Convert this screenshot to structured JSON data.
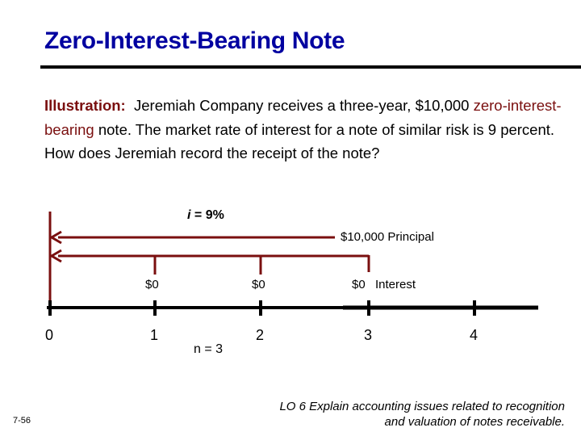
{
  "title": "Zero-Interest-Bearing Note",
  "illustration": {
    "label": "Illustration:",
    "text_1": "Jeremiah Company receives a three-year, $10,000",
    "emphasis": "zero-interest-bearing",
    "text_2": "note. The market rate of interest for a note of similar risk is 9 percent.  How does Jeremiah record the receipt of the note?"
  },
  "timeline": {
    "rate_symbol": "i",
    "rate_value": "= 9%",
    "principal": "$10,000   Principal",
    "interest_amounts": [
      "$0",
      "$0",
      "$0"
    ],
    "interest_label": "Interest",
    "periods": [
      "0",
      "1",
      "2",
      "3",
      "4"
    ],
    "n_label": "n = 3",
    "colors": {
      "arrow": "#7a0f0f",
      "axis": "#000000"
    }
  },
  "slide_number": "7-56",
  "learning_objective": {
    "line1": "LO 6  Explain accounting issues related to recognition",
    "line2": "and valuation of notes receivable."
  }
}
